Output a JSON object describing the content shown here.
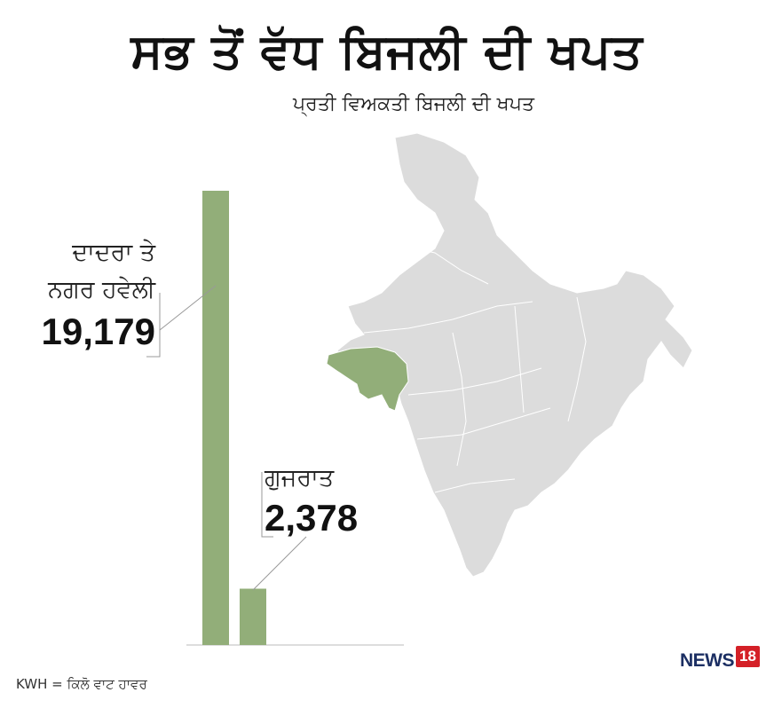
{
  "title": "ਸਭ ਤੋਂ ਵੱਧ ਬਿਜਲੀ ਦੀ ਖਪਤ",
  "subtitle": "ਪ੍ਰਤੀ ਵਿਅਕਤੀ ਬਿਜਲੀ ਦੀ ਖਪਤ",
  "footnote": "KWH = ਕਿਲੋ ਵਾਟ ਹਾਵਰ",
  "logo": {
    "word": "NEWS",
    "number": "18"
  },
  "colors": {
    "bar": "#92ae79",
    "map_land": "#dcdcdc",
    "map_highlight": "#92ae79",
    "text": "#111111"
  },
  "chart_data": {
    "type": "bar",
    "categories": [
      "ਦਾਦਰਾ ਤੇ ਨਗਰ ਹਵੇਲੀ",
      "ਗੁਜਰਾਤ"
    ],
    "values": [
      19179,
      2378
    ],
    "value_labels": [
      "19,179",
      "2,378"
    ],
    "category_labels": [
      [
        "ਦਾਦਰਾ ਤੇ",
        "ਨਗਰ ਹਵੇਲੀ"
      ],
      [
        "ਗੁਜਰਾਤ"
      ]
    ],
    "ylim": [
      0,
      19179
    ],
    "grid": false,
    "legend": "none"
  }
}
